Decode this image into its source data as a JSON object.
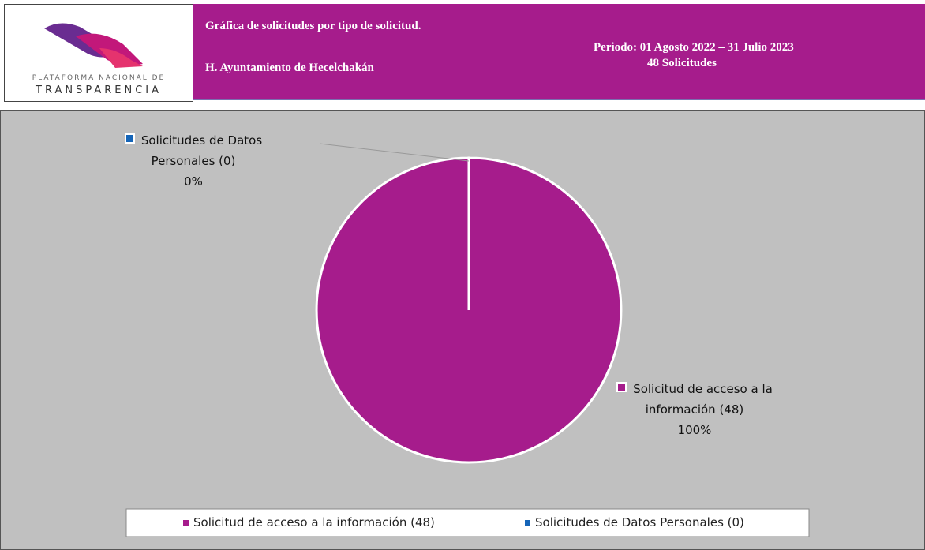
{
  "header": {
    "title": "Gráfica de solicitudes por tipo de solicitud.",
    "entity": "H. Ayuntamiento de Hecelchakán",
    "period": "Periodo: 01 Agosto 2022 – 31 Julio 2023",
    "total": "48 Solicitudes",
    "logo_line1": "PLATAFORMA NACIONAL DE",
    "logo_line2": "TRANSPARENCIA"
  },
  "chart_data": {
    "type": "pie",
    "categories": [
      "Solicitud de acceso a la información (48)",
      "Solicitudes de Datos Personales (0)"
    ],
    "values": [
      100,
      0
    ],
    "value_labels": [
      "100%",
      "0%"
    ],
    "colors": [
      "#a61c8c",
      "#1565b8"
    ],
    "legend": "bottom"
  }
}
